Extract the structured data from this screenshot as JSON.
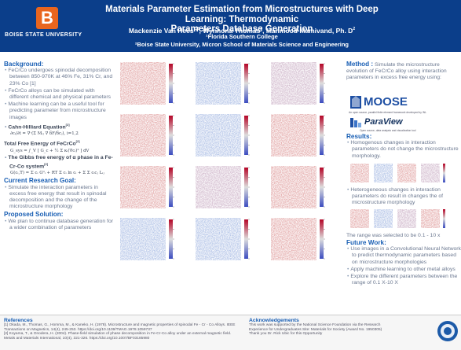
{
  "header": {
    "title_line1": "Materials Parameter Estimation from Microstructures with Deep Learning: Thermodynamic",
    "title_line2": "Parameters Database Generation",
    "authors": "Mackenzie Van Hees",
    "authors_sup1": "1,2",
    "authors_rest": ", Wynnona Thomas",
    "authors_sup2": "2",
    "authors_rest2": ", Mahmood Mamivand, Ph. D",
    "authors_sup3": "2",
    "affiliation1": "¹Florida Southern College",
    "affiliation2": "²Boise State University, Micron School of Materials Science and Engineering",
    "logo_letter": "B",
    "logo_text": "BOISE STATE UNIVERSITY"
  },
  "colors": {
    "header_bg": "#0b3e8a",
    "heading": "#1a5fb4",
    "logo_orange": "#e9651e"
  },
  "background": {
    "heading": "Background:",
    "bullets": [
      "FeCrCo undergoes spinodal decomposition between 850-970K at 46% Fe, 31% Cr, and 23% Co [1]",
      "FeCrCo alloys can be simulated with different chemical and physical parameters",
      "Machine learning can be a useful tool for predicting parameter from microstructure images"
    ],
    "cahn_hilliard": "Cahn-Hilliard Equation",
    "cahn_sup": "[2]",
    "eq1": "∂cᵢ/∂t = ∇·(Σ Mᵢⱼ ∇ δF/δcⱼ),  i=1,2",
    "free_energy": "Total Free Energy of FeCrCo",
    "free_sup": "[2]",
    "eq2": "G_sys = ∫_V [ G_c + ½ Σ κᵢ(∇cᵢ)² ] dV",
    "gibbs": "The Gibbs free energy of α phase in a Fe-Cr-Co system",
    "gibbs_sup": "[2]",
    "eq3": "G(cᵢ,T) = Σ cᵢ G⁰ᵢ + RT Σ cᵢ ln cᵢ + Σ Σ cᵢcⱼ Lᵢⱼ"
  },
  "research_goal": {
    "heading": "Current Research Goal:",
    "bullets": [
      "Simulate the interaction parameters in excess free energy that result in spinodal decomposition and the change of the microstructure morphology"
    ]
  },
  "proposed": {
    "heading": "Proposed Solution:",
    "bullets": [
      "We plan to continue database generation for a wider combination of parameters"
    ]
  },
  "method": {
    "heading": "Method :",
    "text": "Simulate the microstructure evolution of FeCrCo alloy using interaction parameters in excess free energy using:",
    "moose_label": "MOOSE",
    "moose_caption": "An open source, parallel finite element framework developed by INL",
    "paraview_label": "ParaView",
    "paraview_caption": "Open source, data analysis and visualization tool"
  },
  "results": {
    "heading": "Results:",
    "bullets": [
      "Homogenous changes in interaction parameters do not change the microstructure morphology.",
      "Heterogeneous changes in interaction parameters do result in changes the of microstructure morphology"
    ],
    "range_text": "The range was selected to be 0.1 - 10 x"
  },
  "future": {
    "heading": "Future Work:",
    "bullets": [
      "Use images in a Convolutional Neural Network to predict thermodynamic parameters based on microstructure morphologies",
      "Apply machine learning to other metal alloys",
      "Explore the different parameters between the range of 0.1 X-10 X"
    ]
  },
  "references": {
    "heading": "References",
    "items": [
      "[1] Okada, M., Thomas, G., Homma, M., & Kaneko, H. (1978). Microstructure and magnetic properties of spinodal Fe - Cr - Co Alloys. IEEE Transactions on Magnetics, 14(4), 245-253. https://doi.org/10.1109/TMAG.1978.1059737",
      "[2] Koyama, T., & Onodera, H. (2004). Phase-field simulation of phase decomposition in Fe-Cr-Co alloy under an external magnetic field. Metals and Materials International, 10(4), 321-326. https://doi.org/10.1007/BF03185980"
    ]
  },
  "acknowledgements": {
    "heading": "Acknowledgements",
    "lines": [
      "This work was supported by the National Science Foundation via the Research",
      "Experience for Undergraduates Site: Materials for Society (Award No. 1950305)",
      "Thank you Dr. Rick Ubic for this Opportunity"
    ]
  }
}
